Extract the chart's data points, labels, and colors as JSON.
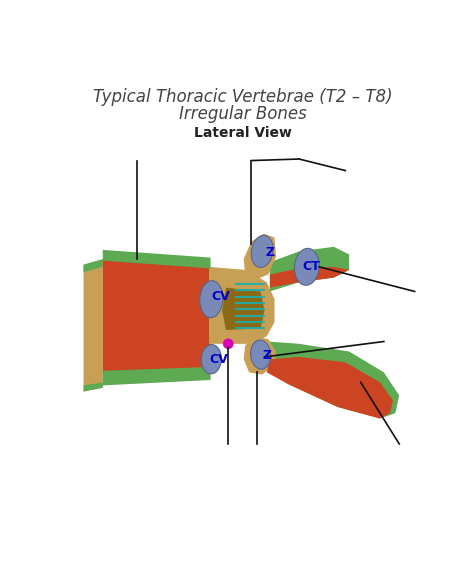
{
  "title_line1": "Typical Thoracic Vertebrae (T2 – T8)",
  "title_line2": "Irregular Bones",
  "subtitle": "Lateral View",
  "title_fontsize": 12,
  "subtitle_fontsize": 10,
  "background_color": "#ffffff",
  "figsize": [
    4.74,
    5.68
  ],
  "dpi": 100,
  "colors": {
    "green": "#5daa52",
    "red": "#cc4422",
    "tan": "#c8a055",
    "dark_tan": "#9a7535",
    "blue_gray": "#7a8ab8",
    "magenta": "#dd00bb",
    "teal": "#1aafaf",
    "black": "#111111",
    "blue_label": "#0000cc"
  }
}
